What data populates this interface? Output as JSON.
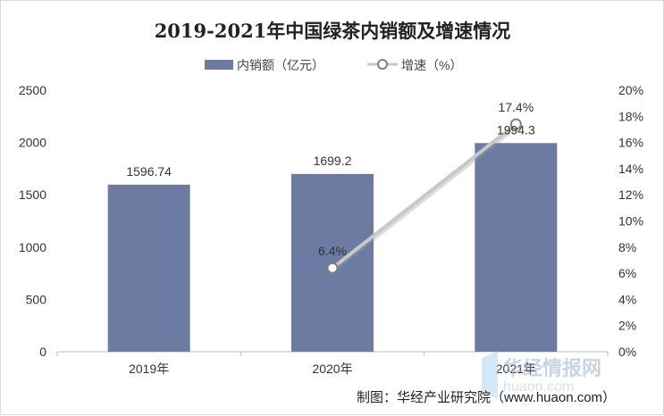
{
  "chart_data": {
    "type": "bar",
    "title": "2019-2021年中国绿茶内销额及增速情况",
    "categories": [
      "2019年",
      "2020年",
      "2021年"
    ],
    "series": [
      {
        "name": "内销额（亿元）",
        "type": "bar",
        "axis": "left",
        "values": [
          1596.74,
          1699.2,
          1994.3
        ],
        "labels": [
          "1596.74",
          "1699.2",
          "1994.3"
        ]
      },
      {
        "name": "增速（%）",
        "type": "line",
        "axis": "right",
        "values": [
          null,
          6.4,
          17.4
        ],
        "labels": [
          "",
          "6.4%",
          "17.4%"
        ]
      }
    ],
    "y_left": {
      "lim": [
        0,
        2500
      ],
      "ticks": [
        "0",
        "500",
        "1000",
        "1500",
        "2000",
        "2500"
      ]
    },
    "y_right": {
      "lim": [
        0,
        20
      ],
      "ticks": [
        "0%",
        "2%",
        "4%",
        "6%",
        "8%",
        "10%",
        "12%",
        "14%",
        "16%",
        "18%",
        "20%"
      ]
    },
    "grid": false,
    "legend": "top-center",
    "colors": {
      "bar": "#6b7ba1",
      "line": "#c8c8c8",
      "marker_fill": "#ffffff",
      "marker_stroke": "#7f7f7f"
    }
  },
  "footer": {
    "source": "制图：华经产业研究院（www.huaon.com）"
  },
  "watermark": {
    "text": "华经情报网",
    "sub": "huaon.com"
  }
}
